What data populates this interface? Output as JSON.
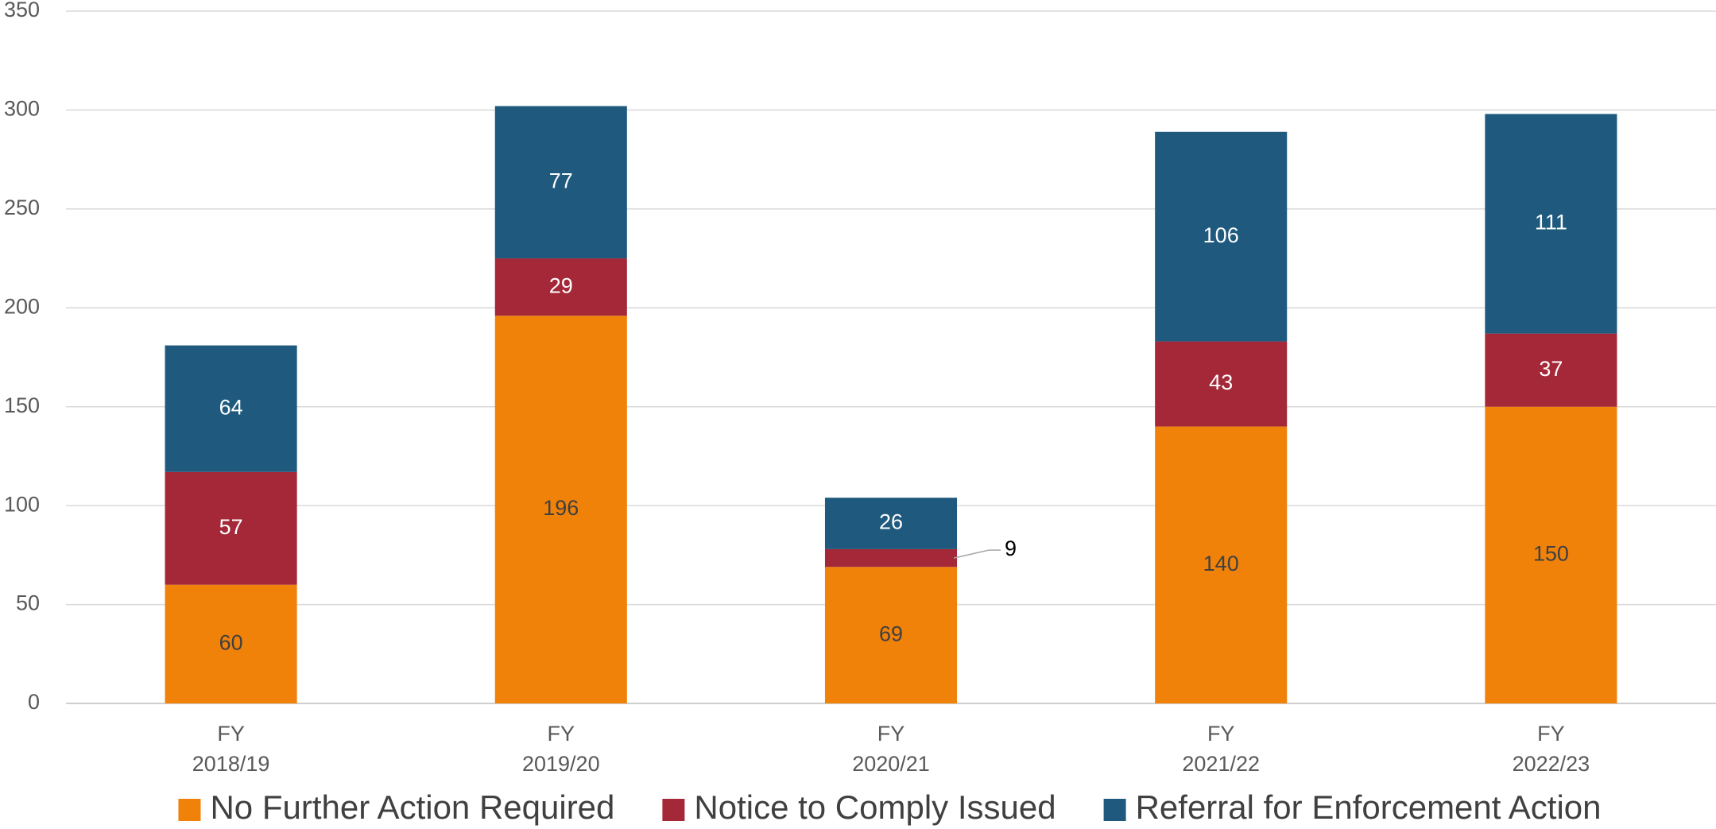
{
  "chart_data": {
    "type": "stacked_bar",
    "categories": [
      "FY 2018/19",
      "FY 2019/20",
      "FY 2020/21",
      "FY 2021/22",
      "FY 2022/23"
    ],
    "series": [
      {
        "name": "No Further Action Required",
        "color": "#f0820a",
        "values": [
          60,
          196,
          69,
          140,
          150
        ]
      },
      {
        "name": "Notice to Comply Issued",
        "color": "#a42838",
        "values": [
          57,
          29,
          9,
          43,
          37
        ]
      },
      {
        "name": "Referral for Enforcement Action",
        "color": "#1f5a7e",
        "values": [
          64,
          77,
          26,
          106,
          111
        ]
      }
    ],
    "ylim": [
      0,
      350
    ],
    "yticks": [
      0,
      50,
      100,
      150,
      200,
      250,
      300,
      350
    ],
    "grid": true,
    "legend": "bottom"
  }
}
